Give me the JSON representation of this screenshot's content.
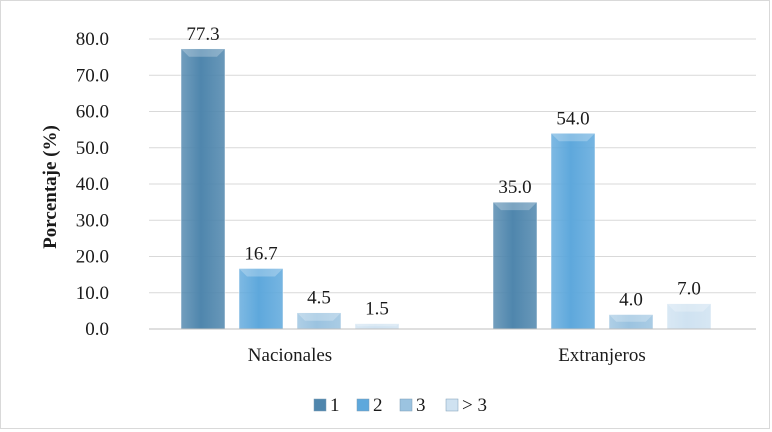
{
  "chart_data": {
    "type": "bar",
    "categories": [
      "Nacionales",
      "Extranjeros"
    ],
    "series": [
      {
        "name": "1",
        "values": [
          77.3,
          35.0
        ],
        "color": "#4f86ad"
      },
      {
        "name": "2",
        "values": [
          16.7,
          54.0
        ],
        "color": "#5ea8dc"
      },
      {
        "name": "3",
        "values": [
          4.5,
          4.0
        ],
        "color": "#9bc3e0"
      },
      {
        "name": "> 3",
        "values": [
          1.5,
          7.0
        ],
        "color": "#cfe2f1"
      }
    ],
    "data_labels": [
      [
        "77.3",
        "35.0"
      ],
      [
        "16.7",
        "54.0"
      ],
      [
        "4.5",
        "4.0"
      ],
      [
        "1.5",
        "7.0"
      ]
    ],
    "y_ticks": [
      "0.0",
      "10.0",
      "20.0",
      "30.0",
      "40.0",
      "50.0",
      "60.0",
      "70.0",
      "80.0"
    ],
    "ylabel": "Porcentaje (%)",
    "xlabel": "",
    "title": "",
    "ylim": [
      0,
      80
    ],
    "grid": true,
    "legend_position": "bottom"
  }
}
